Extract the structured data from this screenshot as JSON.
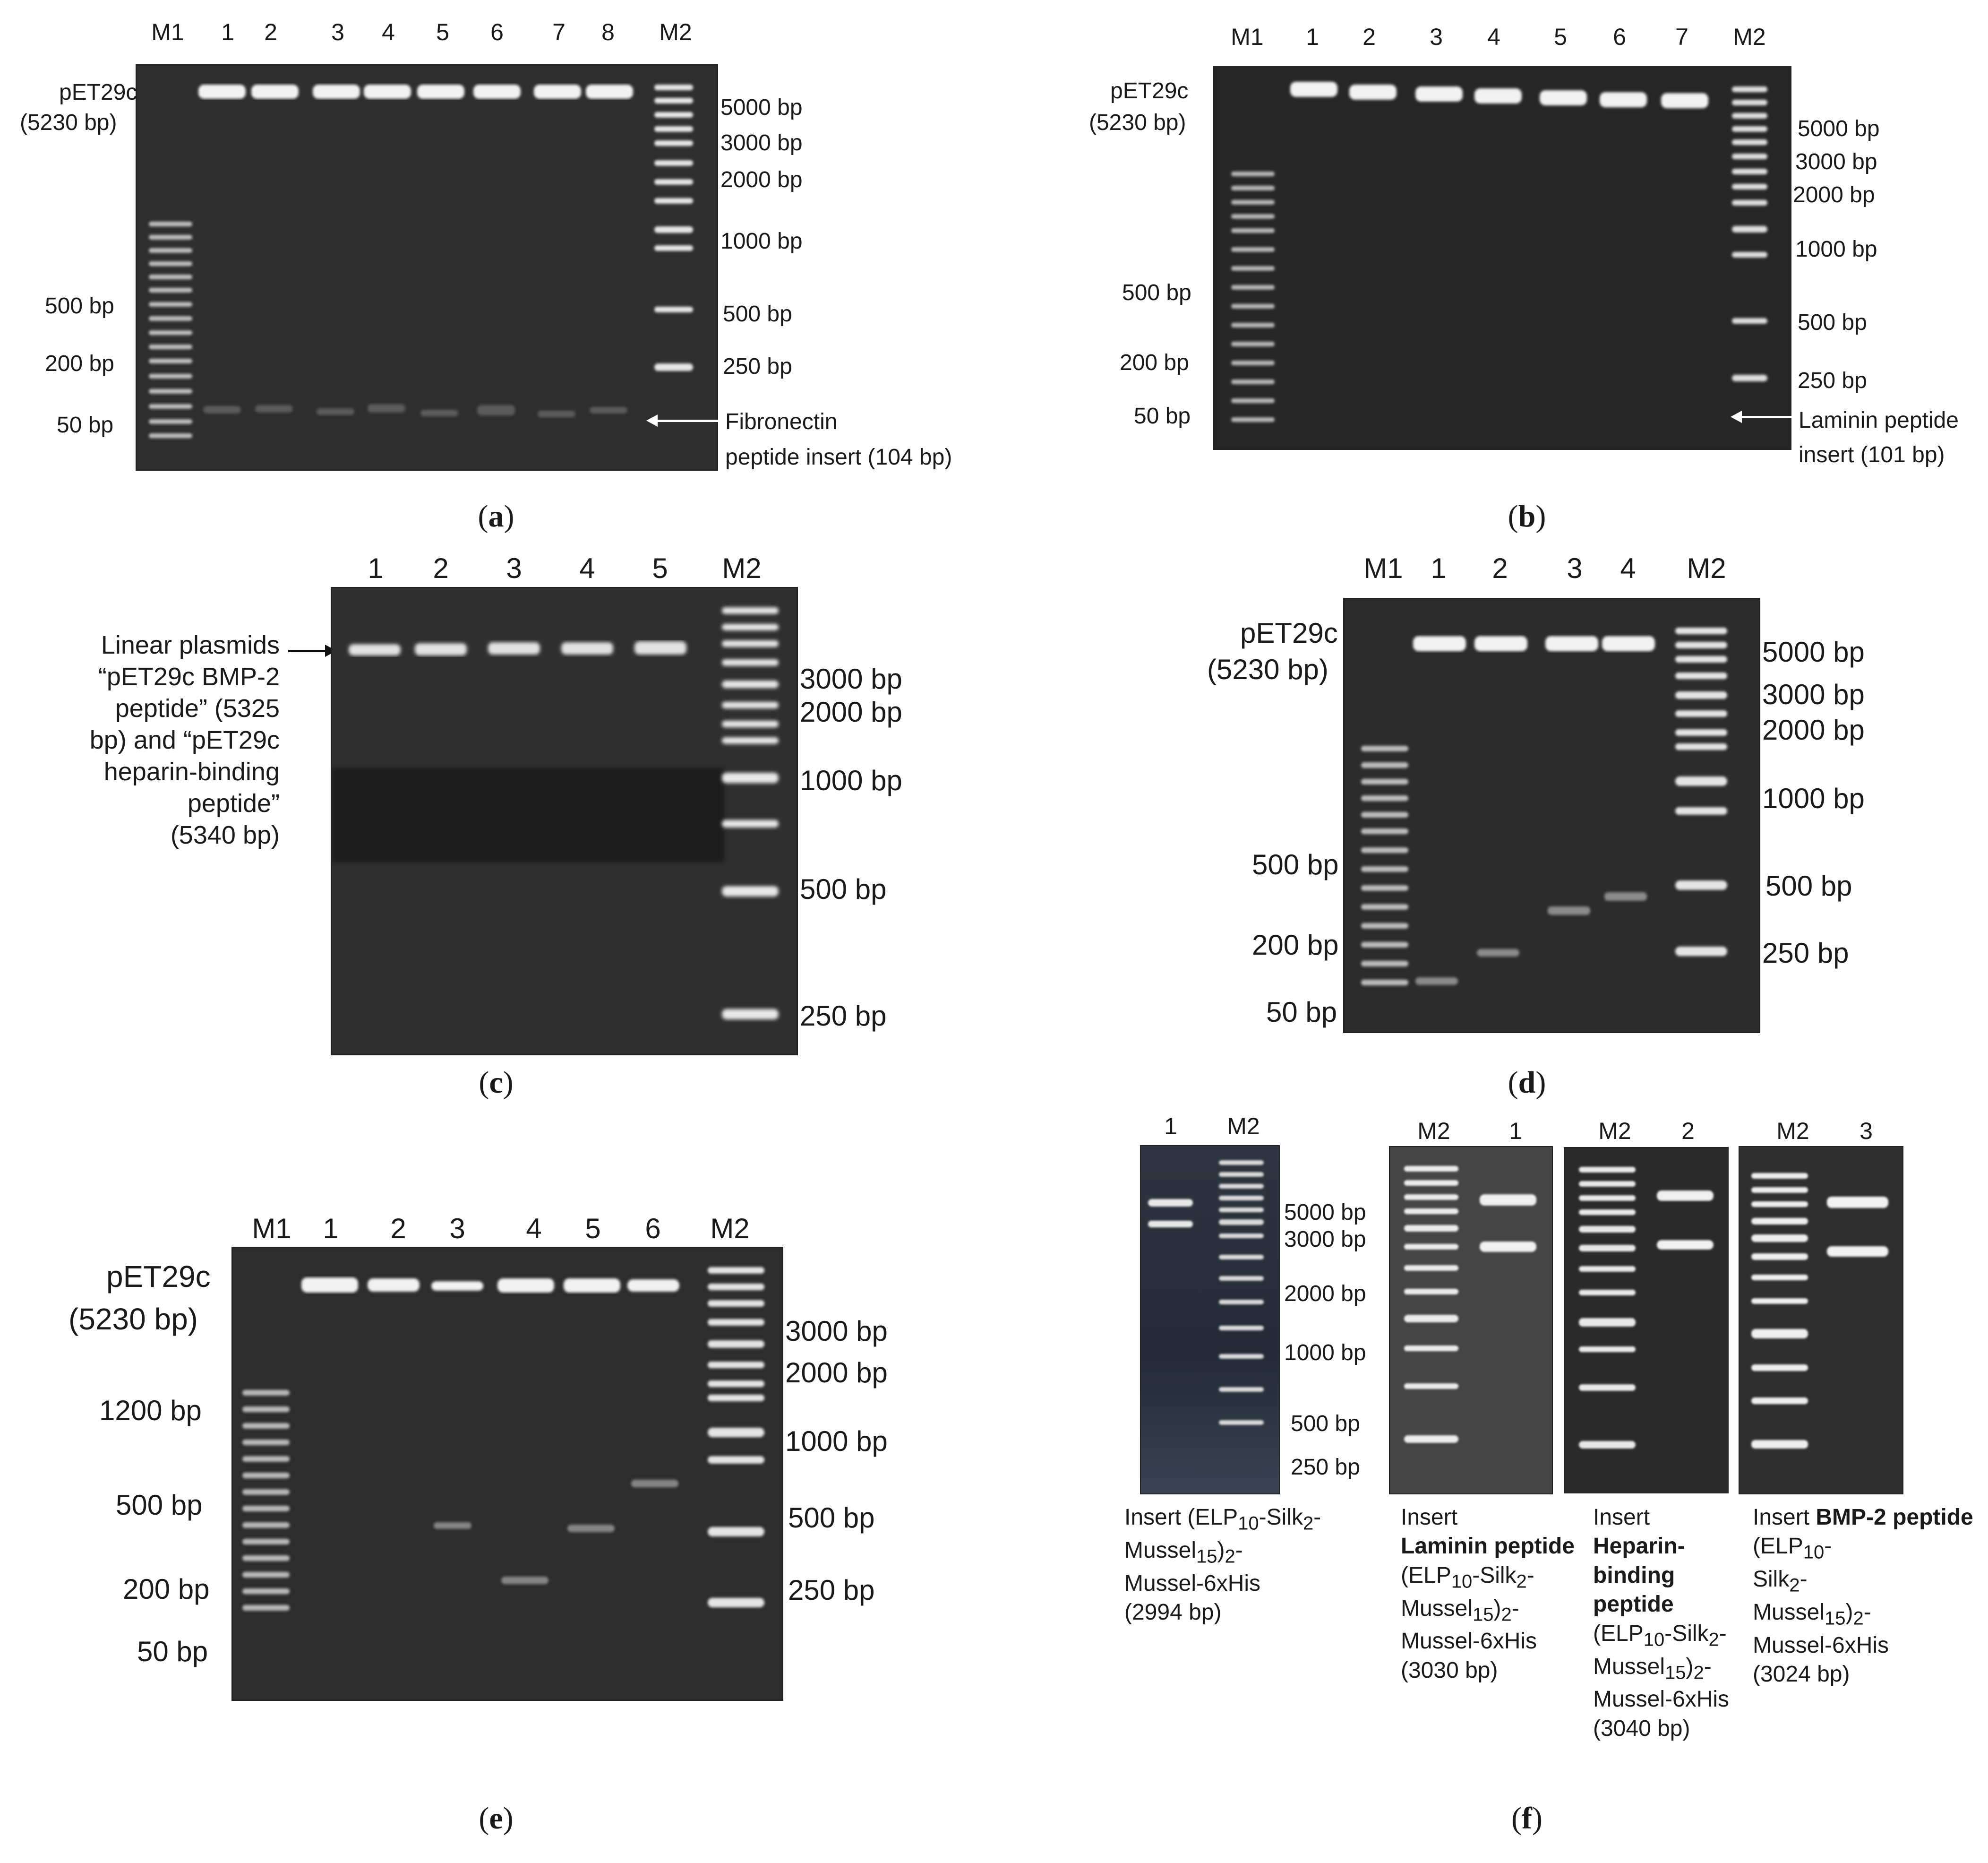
{
  "panels": {
    "a": {
      "caption_open": "(",
      "caption_letter": "a",
      "caption_close": ")",
      "lanes": [
        "M1",
        "1",
        "2",
        "3",
        "4",
        "5",
        "6",
        "7",
        "8",
        "M2"
      ],
      "left_title": "pET29c",
      "left_subtitle": "(5230 bp)",
      "left_sizes": [
        "500 bp",
        "200 bp",
        "50 bp"
      ],
      "right_sizes": [
        "5000 bp",
        "3000 bp",
        "2000 bp",
        "1000 bp",
        "500 bp",
        "250 bp"
      ],
      "insert_line1": "Fibronectin",
      "insert_line2": "peptide insert (104 bp)"
    },
    "b": {
      "caption_open": "(",
      "caption_letter": "b",
      "caption_close": ")",
      "lanes": [
        "M1",
        "1",
        "2",
        "3",
        "4",
        "5",
        "6",
        "7",
        "M2"
      ],
      "left_title": "pET29c",
      "left_subtitle": "(5230 bp)",
      "left_sizes": [
        "500 bp",
        "200 bp",
        "50 bp"
      ],
      "right_sizes": [
        "5000 bp",
        "3000 bp",
        "2000 bp",
        "1000 bp",
        "500 bp",
        "250 bp"
      ],
      "insert_line1": "Laminin peptide",
      "insert_line2": "insert (101 bp)"
    },
    "c": {
      "caption_open": "(",
      "caption_letter": "c",
      "caption_close": ")",
      "lanes": [
        "1",
        "2",
        "3",
        "4",
        "5",
        "M2"
      ],
      "left_lines": [
        "Linear plasmids",
        "“pET29c BMP-2",
        "peptide” (5325",
        "bp) and “pET29c",
        "heparin-binding",
        "peptide”",
        "(5340 bp)"
      ],
      "right_sizes": [
        "3000 bp",
        "2000 bp",
        "1000 bp",
        "500 bp",
        "250 bp"
      ]
    },
    "d": {
      "caption_open": "(",
      "caption_letter": "d",
      "caption_close": ")",
      "lanes": [
        "M1",
        "1",
        "2",
        "3",
        "4",
        "M2"
      ],
      "left_title": "pET29c",
      "left_subtitle": "(5230 bp)",
      "left_sizes": [
        "500 bp",
        "200 bp",
        "50 bp"
      ],
      "right_sizes": [
        "5000 bp",
        "3000 bp",
        "2000 bp",
        "1000 bp",
        "500 bp",
        "250 bp"
      ]
    },
    "e": {
      "caption_open": "(",
      "caption_letter": "e",
      "caption_close": ")",
      "lanes": [
        "M1",
        "1",
        "2",
        "3",
        "4",
        "5",
        "6",
        "M2"
      ],
      "left_title": "pET29c",
      "left_subtitle": "(5230 bp)",
      "left_sizes": [
        "1200 bp",
        "500 bp",
        "200 bp",
        "50 bp"
      ],
      "right_sizes": [
        "3000 bp",
        "2000 bp",
        "1000 bp",
        "500 bp",
        "250 bp"
      ]
    },
    "f": {
      "caption_open": "(",
      "caption_letter": "f",
      "caption_close": ")",
      "gel_lanes": [
        [
          "1",
          "M2"
        ],
        [
          "M2",
          "1"
        ],
        [
          "M2",
          "2"
        ],
        [
          "M2",
          "3"
        ]
      ],
      "sizes": [
        "5000 bp",
        "3000 bp",
        "2000 bp",
        "1000 bp",
        "500 bp",
        "250 bp"
      ],
      "notes": [
        {
          "insert": "Insert",
          "name": "",
          "elp": "(ELP",
          "elp_sub": "10",
          "silk": "-Silk",
          "silk_sub": "2",
          "mussel": "Mussel",
          "mussel_sub": "15",
          "close": ")",
          "close_sub": "2",
          "his": "Mussel-6xHis",
          "size": "(2994 bp)"
        },
        {
          "insert": "Insert",
          "name": "Laminin peptide",
          "elp": "(ELP",
          "elp_sub": "10",
          "silk": "-Silk",
          "silk_sub": "2",
          "mussel": "Mussel",
          "mussel_sub": "15",
          "close": ")",
          "close_sub": "2",
          "his": "Mussel-6xHis",
          "size": "(3030 bp)"
        },
        {
          "insert": "Insert",
          "name": "Heparin-binding peptide",
          "elp": "(ELP",
          "elp_sub": "10",
          "silk": "-Silk",
          "silk_sub": "2",
          "mussel": "Mussel",
          "mussel_sub": "15",
          "close": ")",
          "close_sub": "2",
          "his": "Mussel-6xHis",
          "size": "(3040 bp)"
        },
        {
          "insert": "Insert",
          "name": "BMP-2 peptide",
          "elp": "(ELP",
          "elp_sub": "10",
          "silk": "Silk",
          "silk_sub": "2",
          "mussel": "Mussel",
          "mussel_sub": "15",
          "close": ")",
          "close_sub": "2",
          "his": "Mussel-6xHis",
          "size": "(3024 bp)"
        }
      ]
    }
  },
  "colors": {
    "gel_bg": "#2b2b2b",
    "gel_dark": "#1c1c1c",
    "band": "#eeeeee",
    "ink": "#1a1a1a"
  }
}
